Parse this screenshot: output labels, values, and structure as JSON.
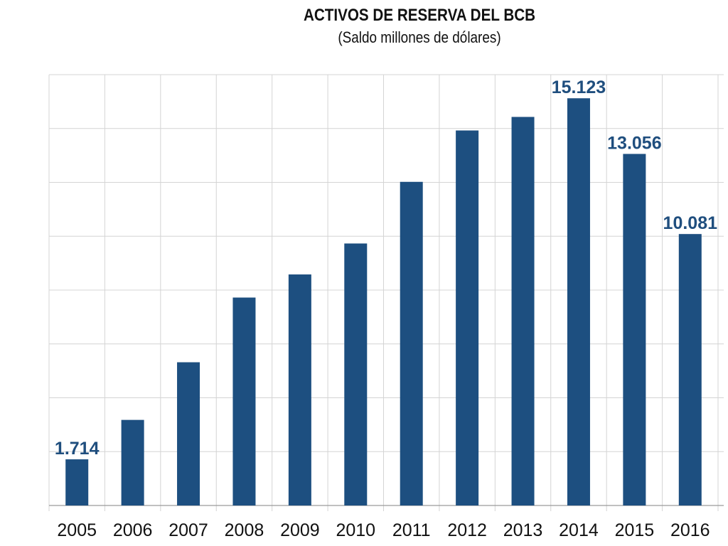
{
  "chart_data": {
    "type": "bar",
    "title": "ACTIVOS DE RESERVA DEL BCB",
    "subtitle": "(Saldo millones de dólares)",
    "categories": [
      "2005",
      "2006",
      "2007",
      "2008",
      "2009",
      "2010",
      "2011",
      "2012",
      "2013",
      "2014",
      "2015",
      "2016"
    ],
    "values": [
      1714,
      3178,
      5319,
      7722,
      8580,
      9730,
      12019,
      13927,
      14430,
      15123,
      13056,
      10081
    ],
    "data_labels": [
      "1.714",
      "",
      "",
      "",
      "",
      "",
      "",
      "",
      "",
      "15.123",
      "13.056",
      "10.081"
    ],
    "ylim": [
      0,
      16000
    ],
    "gridlines": 8,
    "grid": true,
    "bar_color": "#1d4f80",
    "label_color": "#1f4e7e"
  }
}
